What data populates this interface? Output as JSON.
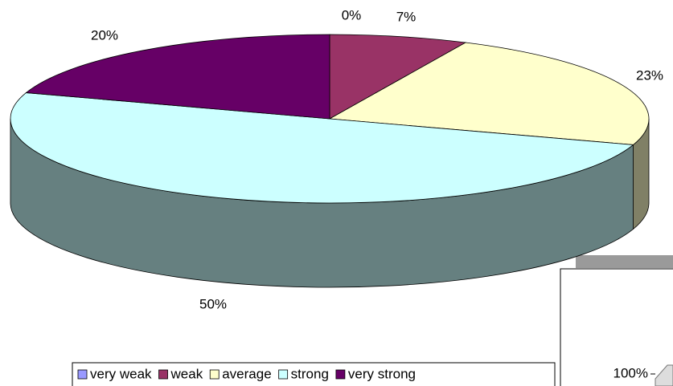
{
  "chart_data": [
    {
      "type": "pie3d",
      "categories": [
        "very weak",
        "weak",
        "average",
        "strong",
        "very strong"
      ],
      "values": [
        0,
        7,
        23,
        50,
        20
      ],
      "value_labels": [
        "0%",
        "7%",
        "23%",
        "50%",
        "20%"
      ],
      "colors": [
        "#9999ff",
        "#993366",
        "#ffffcc",
        "#ccffff",
        "#660066"
      ],
      "legend": "bottom"
    },
    {
      "type": "bar",
      "yticks": [
        {
          "value": 100,
          "label": "100%"
        }
      ]
    }
  ]
}
